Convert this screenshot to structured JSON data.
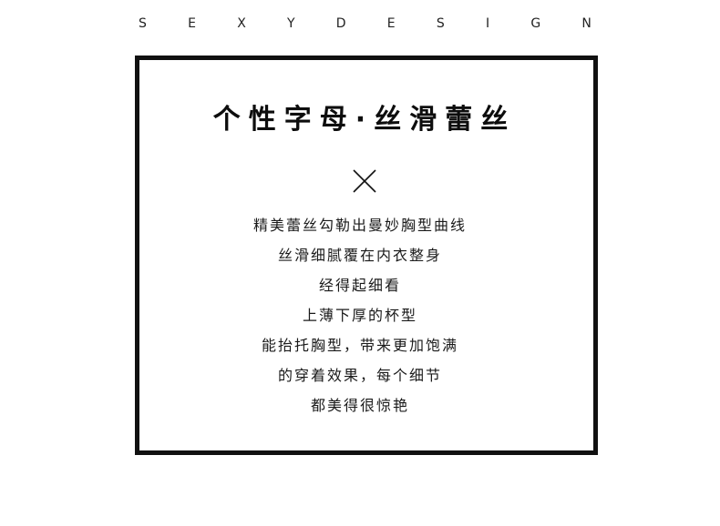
{
  "brand": {
    "letters": [
      "S",
      "E",
      "X",
      "Y",
      "D",
      "E",
      "S",
      "I",
      "G",
      "N"
    ]
  },
  "title": "个性字母·丝滑蕾丝",
  "icons": {
    "divider": "x-cross-icon"
  },
  "description": [
    "精美蕾丝勾勒出曼妙胸型曲线",
    "丝滑细腻覆在内衣整身",
    "经得起细看",
    "上薄下厚的杯型",
    "能抬托胸型，带来更加饱满",
    "的穿着效果，每个细节",
    "都美得很惊艳"
  ],
  "colors": {
    "text": "#111111",
    "background": "#ffffff",
    "frame": "#111111"
  }
}
